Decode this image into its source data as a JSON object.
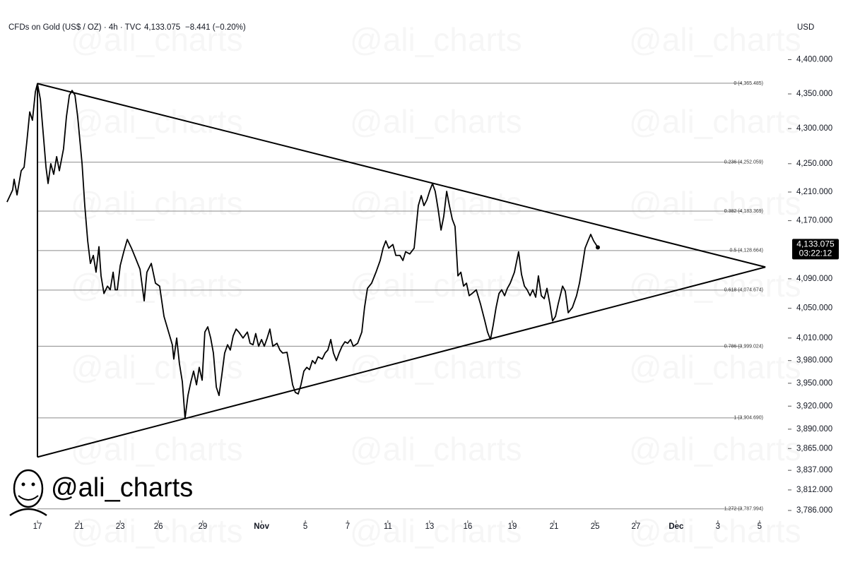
{
  "chart_data": {
    "type": "line",
    "title": "CFDs on Gold (US$ / OZ) · 4h · TVC",
    "last_price": {
      "value": 4133.075,
      "label": "4,133.075"
    },
    "change": "−8.441 (−0.20%)",
    "countdown": "03:22:12",
    "y_axis_label": "USD",
    "watermark": "@ali_charts",
    "log_scale": true,
    "xlim": [
      -1.5,
      36
    ],
    "ylim": [
      3770,
      4470
    ],
    "xticks": [
      {
        "value": 0,
        "label": "17"
      },
      {
        "value": 2,
        "label": "21"
      },
      {
        "value": 3.97,
        "label": "23"
      },
      {
        "value": 5.8,
        "label": "26"
      },
      {
        "value": 7.93,
        "label": "29"
      },
      {
        "value": 10.75,
        "label": "Nov"
      },
      {
        "value": 12.85,
        "label": "5"
      },
      {
        "value": 14.88,
        "label": "7"
      },
      {
        "value": 16.81,
        "label": "11"
      },
      {
        "value": 18.81,
        "label": "13"
      },
      {
        "value": 20.64,
        "label": "16"
      },
      {
        "value": 22.78,
        "label": "19"
      },
      {
        "value": 24.78,
        "label": "21"
      },
      {
        "value": 26.75,
        "label": "25"
      },
      {
        "value": 28.71,
        "label": "27"
      },
      {
        "value": 30.64,
        "label": "Dec"
      },
      {
        "value": 32.64,
        "label": "3"
      },
      {
        "value": 34.64,
        "label": "5"
      }
    ],
    "yticks": [
      {
        "value": 4400,
        "label": "4,400.000"
      },
      {
        "value": 4350,
        "label": "4,350.000"
      },
      {
        "value": 4300,
        "label": "4,300.000"
      },
      {
        "value": 4250,
        "label": "4,250.000"
      },
      {
        "value": 4210,
        "label": "4,210.000"
      },
      {
        "value": 4170,
        "label": "4,170.000"
      },
      {
        "value": 4090,
        "label": "4,090.000"
      },
      {
        "value": 4050,
        "label": "4,050.000"
      },
      {
        "value": 4010,
        "label": "4,010.000"
      },
      {
        "value": 3980,
        "label": "3,980.000"
      },
      {
        "value": 3950,
        "label": "3,950.000"
      },
      {
        "value": 3920,
        "label": "3,920.000"
      },
      {
        "value": 3890,
        "label": "3,890.000"
      },
      {
        "value": 3865,
        "label": "3,865.000"
      },
      {
        "value": 3837,
        "label": "3,837.000"
      },
      {
        "value": 3812,
        "label": "3,812.000"
      },
      {
        "value": 3786,
        "label": "3,786.000"
      }
    ],
    "fib_levels": [
      {
        "value": 4365.485,
        "label": "0 (4,365.485)"
      },
      {
        "value": 4252.059,
        "label": "0.236 (4,252.059)"
      },
      {
        "value": 4183.369,
        "label": "0.382 (4,183.369)"
      },
      {
        "value": 4128.664,
        "label": "0.5 (4,128.664)"
      },
      {
        "value": 4074.674,
        "label": "0.618 (4,074.674)"
      },
      {
        "value": 3999.024,
        "label": "0.786 (3,999.024)"
      },
      {
        "value": 3904.69,
        "label": "1 (3,904.690)"
      },
      {
        "value": 3787.994,
        "label": "1.272 (3,787.994)"
      }
    ],
    "trendlines": [
      {
        "x": [
          0,
          34.92
        ],
        "values": [
          4365,
          4106
        ]
      },
      {
        "x": [
          0,
          34.92
        ],
        "values": [
          3854,
          4106
        ]
      },
      {
        "x": [
          0,
          0
        ],
        "values": [
          4365,
          3854
        ]
      }
    ],
    "series": [
      {
        "name": "Gold",
        "color": "#000000",
        "x": [
          -1.46,
          -1.19,
          -1.12,
          -0.98,
          -0.78,
          -0.64,
          -0.51,
          -0.37,
          -0.24,
          -0.1,
          0,
          0.14,
          0.31,
          0.41,
          0.51,
          0.64,
          0.78,
          0.92,
          1.05,
          1.25,
          1.39,
          1.53,
          1.66,
          1.8,
          1.93,
          2.14,
          2.27,
          2.41,
          2.54,
          2.68,
          2.81,
          2.95,
          3.05,
          3.19,
          3.36,
          3.49,
          3.63,
          3.73,
          3.83,
          3.97,
          4.14,
          4.31,
          4.51,
          4.71,
          4.92,
          5.12,
          5.25,
          5.46,
          5.66,
          5.86,
          6.07,
          6.27,
          6.47,
          6.54,
          6.68,
          6.81,
          6.95,
          7.08,
          7.22,
          7.36,
          7.49,
          7.63,
          7.76,
          7.9,
          8.03,
          8.17,
          8.31,
          8.44,
          8.58,
          8.71,
          8.85,
          8.98,
          9.12,
          9.25,
          9.39,
          9.53,
          9.66,
          9.86,
          10.07,
          10.2,
          10.34,
          10.47,
          10.61,
          10.75,
          10.88,
          11.02,
          11.15,
          11.29,
          11.49,
          11.63,
          11.76,
          11.97,
          12.1,
          12.24,
          12.37,
          12.51,
          12.64,
          12.78,
          12.92,
          13.05,
          13.19,
          13.32,
          13.46,
          13.66,
          13.8,
          13.93,
          14.07,
          14.2,
          14.34,
          14.47,
          14.61,
          14.75,
          14.88,
          15.02,
          15.15,
          15.36,
          15.56,
          15.69,
          15.83,
          16.03,
          16.24,
          16.44,
          16.58,
          16.71,
          16.85,
          17.05,
          17.19,
          17.39,
          17.53,
          17.66,
          17.86,
          18.07,
          18.27,
          18.41,
          18.54,
          18.68,
          18.81,
          18.95,
          19.08,
          19.22,
          19.36,
          19.49,
          19.63,
          19.76,
          19.9,
          20.03,
          20.17,
          20.31,
          20.44,
          20.58,
          20.71,
          20.85,
          21.05,
          21.25,
          21.46,
          21.59,
          21.73,
          21.86,
          22,
          22.14,
          22.27,
          22.41,
          22.54,
          22.68,
          22.88,
          23.08,
          23.22,
          23.36,
          23.49,
          23.63,
          23.76,
          23.9,
          24.03,
          24.17,
          24.31,
          24.44,
          24.58,
          24.71,
          24.85,
          24.98,
          25.19,
          25.32,
          25.46,
          25.66,
          25.86,
          26,
          26.14,
          26.27,
          26.41,
          26.54,
          26.68,
          26.88
        ],
        "values": [
          4196,
          4213,
          4228,
          4206,
          4240,
          4245,
          4281,
          4324,
          4312,
          4353,
          4365,
          4342,
          4281,
          4245,
          4222,
          4250,
          4235,
          4260,
          4240,
          4271,
          4317,
          4348,
          4355,
          4348,
          4317,
          4250,
          4191,
          4142,
          4111,
          4122,
          4099,
          4134,
          4094,
          4070,
          4080,
          4075,
          4099,
          4075,
          4075,
          4108,
          4127,
          4144,
          4132,
          4118,
          4103,
          4060,
          4099,
          4111,
          4084,
          4080,
          4039,
          4020,
          4001,
          3982,
          4010,
          3976,
          3952,
          3904,
          3934,
          3952,
          3966,
          3948,
          3971,
          3954,
          4018,
          4025,
          4010,
          3990,
          3945,
          3934,
          3962,
          3990,
          4001,
          3994,
          4013,
          4022,
          4018,
          4010,
          4018,
          4003,
          4001,
          4016,
          3999,
          4008,
          3999,
          4010,
          4022,
          3999,
          4003,
          3994,
          3990,
          3991,
          3971,
          3948,
          3938,
          3936,
          3948,
          3966,
          3971,
          3968,
          3980,
          3976,
          3985,
          3982,
          3990,
          3994,
          4008,
          3990,
          3980,
          3990,
          3999,
          4005,
          4003,
          4008,
          3999,
          4003,
          4018,
          4051,
          4077,
          4084,
          4099,
          4115,
          4132,
          4142,
          4132,
          4137,
          4122,
          4122,
          4115,
          4127,
          4124,
          4132,
          4191,
          4205,
          4191,
          4199,
          4211,
          4222,
          4211,
          4186,
          4157,
          4176,
          4211,
          4191,
          4172,
          4162,
          4094,
          4099,
          4080,
          4084,
          4067,
          4070,
          4075,
          4056,
          4033,
          4018,
          4008,
          4027,
          4051,
          4070,
          4075,
          4067,
          4077,
          4084,
          4099,
          4127,
          4096,
          4080,
          4075,
          4067,
          4075,
          4065,
          4094,
          4067,
          4063,
          4077,
          4056,
          4033,
          4039,
          4056,
          4080,
          4073,
          4044,
          4051,
          4067,
          4084,
          4108,
          4132,
          4142,
          4151,
          4142,
          4133.075
        ]
      }
    ]
  }
}
